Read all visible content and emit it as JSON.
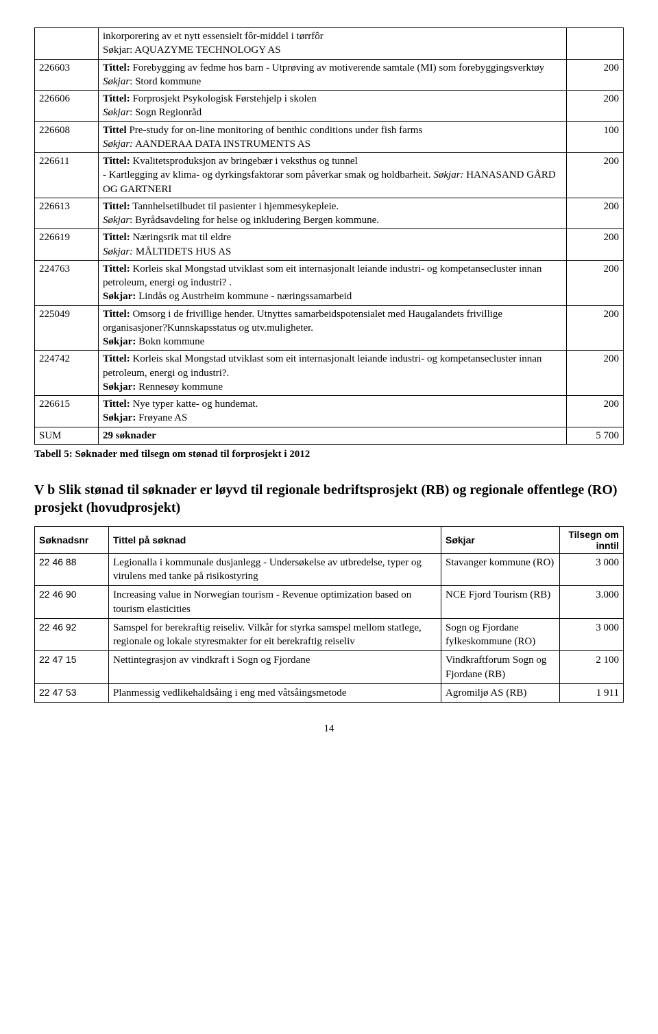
{
  "table1": {
    "rows": [
      {
        "id": "",
        "body": "inkorporering av et nytt essensielt fôr-middel i tørrfôr\nSøkjar: AQUAZYME TECHNOLOGY AS",
        "amt": ""
      },
      {
        "id": "226603",
        "body": "<b>Tittel:</b> Forebygging av fedme hos barn - Utprøving av motiverende samtale (MI) som forebyggingsverktøy <i>Søkjar</i>: Stord kommune",
        "amt": "200"
      },
      {
        "id": "226606",
        "body": "<b>Tittel:</b> Forprosjekt Psykologisk Førstehjelp i skolen\n<i>Søkjar</i>: Sogn Regionråd",
        "amt": "200"
      },
      {
        "id": "226608",
        "body": "<b>Tittel</b> Pre-study for on-line monitoring of benthic conditions under fish farms\n<i>Søkjar:</i> AANDERAA DATA INSTRUMENTS AS",
        "amt": "100"
      },
      {
        "id": "226611",
        "body": "<b>Tittel:</b> Kvalitetsproduksjon  av bringebær i veksthus og tunnel\n- Kartlegging av klima- og dyrkingsfaktorar som påverkar smak og holdbarheit. <i>Søkjar:</i> HANASAND GÅRD OG GARTNERI",
        "amt": "200"
      },
      {
        "id": "226613",
        "body": "<b>Tittel:</b> Tannhelsetilbudet til pasienter i hjemmesykepleie.\n<i>Søkjar</i>: Byrådsavdeling for helse og inkludering Bergen kommune.",
        "amt": "200"
      },
      {
        "id": "226619",
        "body": "<b>Tittel:</b> Næringsrik mat til eldre\n<i>Søkjar:</i> MÅLTIDETS HUS AS",
        "amt": "200"
      },
      {
        "id": "224763",
        "body": "<b>Tittel:</b> Korleis skal Mongstad utviklast som eit internasjonalt leiande industri- og kompetansecluster innan petroleum, energi og industri? .\n<b>Søkjar:</b> Lindås og Austrheim kommune - næringssamarbeid",
        "amt": "200"
      },
      {
        "id": "225049",
        "body": "<b>Tittel:</b> Omsorg i de frivillige hender. Utnyttes samarbeidspotensialet med Haugalandets frivillige organisasjoner?Kunnskapsstatus og utv.muligheter.\n<b>Søkjar:</b> Bokn kommune",
        "amt": "200"
      },
      {
        "id": "224742",
        "body": "<b>Tittel:</b> Korleis skal Mongstad utviklast som eit internasjonalt leiande industri- og kompetansecluster innan petroleum, energi og industri?.\n<b>Søkjar:</b> Rennesøy kommune",
        "amt": "200"
      },
      {
        "id": "226615",
        "body": "<b>Tittel:</b> Nye typer katte- og hundemat.\n<b>Søkjar:</b> Frøyane AS",
        "amt": "200"
      },
      {
        "id": "SUM",
        "body": "<b>29 søknader</b>",
        "amt": "5 700"
      }
    ]
  },
  "caption1": "Tabell 5: Søknader med tilsegn om stønad til forprosjekt i 2012",
  "heading": "V b   Slik stønad til søknader er løyvd til regionale bedriftsprosjekt (RB) og regionale offentlege (RO) prosjekt (hovudprosjekt)",
  "table2": {
    "headers": [
      "Søknadsnr",
      "Tittel på søknad",
      "Søkjar",
      "Tilsegn om inntil"
    ],
    "rows": [
      {
        "id": "22 46 88",
        "title": "Legionalla i kommunale dusjanlegg - Undersøkelse av utbredelse, typer og virulens med tanke på risikostyring",
        "app": "Stavanger kommune (RO)",
        "amt": "3 000",
        "spacer": true
      },
      {
        "id": "22 46 90",
        "title": "Increasing value in Norwegian tourism - Revenue optimization based on tourism elasticities",
        "app": "NCE Fjord Tourism (RB)",
        "amt": "3.000"
      },
      {
        "id": "22 46 92",
        "title": "Samspel for berekraftig reiseliv. Vilkår for styrka samspel mellom statlege, regionale og lokale styresmakter for eit berekraftig reiseliv",
        "app": "Sogn og Fjordane fylkeskommune (RO)",
        "amt": "3 000",
        "spacer": true
      },
      {
        "id": "22 47 15",
        "title": "Nettintegrasjon av vindkraft i Sogn og Fjordane",
        "app": "Vindkraftforum Sogn og Fjordane (RB)",
        "amt": "2 100"
      },
      {
        "id": "22 47 53",
        "title": "Planmessig vedlikehaldsåing i eng med våtsåingsmetode",
        "app": "Agromiljø AS (RB)",
        "amt": "1 911"
      }
    ]
  },
  "pagenum": "14"
}
